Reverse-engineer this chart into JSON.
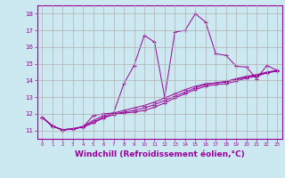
{
  "background_color": "#cce8f0",
  "grid_color": "#b0b0b0",
  "line_color": "#990099",
  "xlabel": "Windchill (Refroidissement éolien,°C)",
  "xlabel_fontsize": 6.5,
  "yticks": [
    11,
    12,
    13,
    14,
    15,
    16,
    17,
    18
  ],
  "xticks": [
    0,
    1,
    2,
    3,
    4,
    5,
    6,
    7,
    8,
    9,
    10,
    11,
    12,
    13,
    14,
    15,
    16,
    17,
    18,
    19,
    20,
    21,
    22,
    23
  ],
  "xlim": [
    -0.5,
    23.5
  ],
  "ylim": [
    10.5,
    18.5
  ],
  "series": [
    [
      11.8,
      11.3,
      11.0,
      11.1,
      11.2,
      11.9,
      12.0,
      12.05,
      13.8,
      14.9,
      16.7,
      16.3,
      13.0,
      16.9,
      17.0,
      18.0,
      17.5,
      15.6,
      15.5,
      14.85,
      14.8,
      14.1,
      14.9,
      14.6
    ],
    [
      11.8,
      11.25,
      11.05,
      11.1,
      11.2,
      11.45,
      11.75,
      11.95,
      12.05,
      12.1,
      12.2,
      12.4,
      12.65,
      12.95,
      13.2,
      13.45,
      13.65,
      13.75,
      13.8,
      13.95,
      14.15,
      14.25,
      14.45,
      14.55
    ],
    [
      11.8,
      11.25,
      11.05,
      11.1,
      11.2,
      11.5,
      11.8,
      12.0,
      12.1,
      12.2,
      12.35,
      12.55,
      12.8,
      13.05,
      13.3,
      13.55,
      13.75,
      13.85,
      13.95,
      14.1,
      14.25,
      14.35,
      14.5,
      14.6
    ],
    [
      11.8,
      11.25,
      11.05,
      11.1,
      11.25,
      11.6,
      11.9,
      12.05,
      12.2,
      12.35,
      12.5,
      12.7,
      12.95,
      13.2,
      13.45,
      13.65,
      13.8,
      13.85,
      13.9,
      14.05,
      14.2,
      14.3,
      14.45,
      14.6
    ]
  ]
}
